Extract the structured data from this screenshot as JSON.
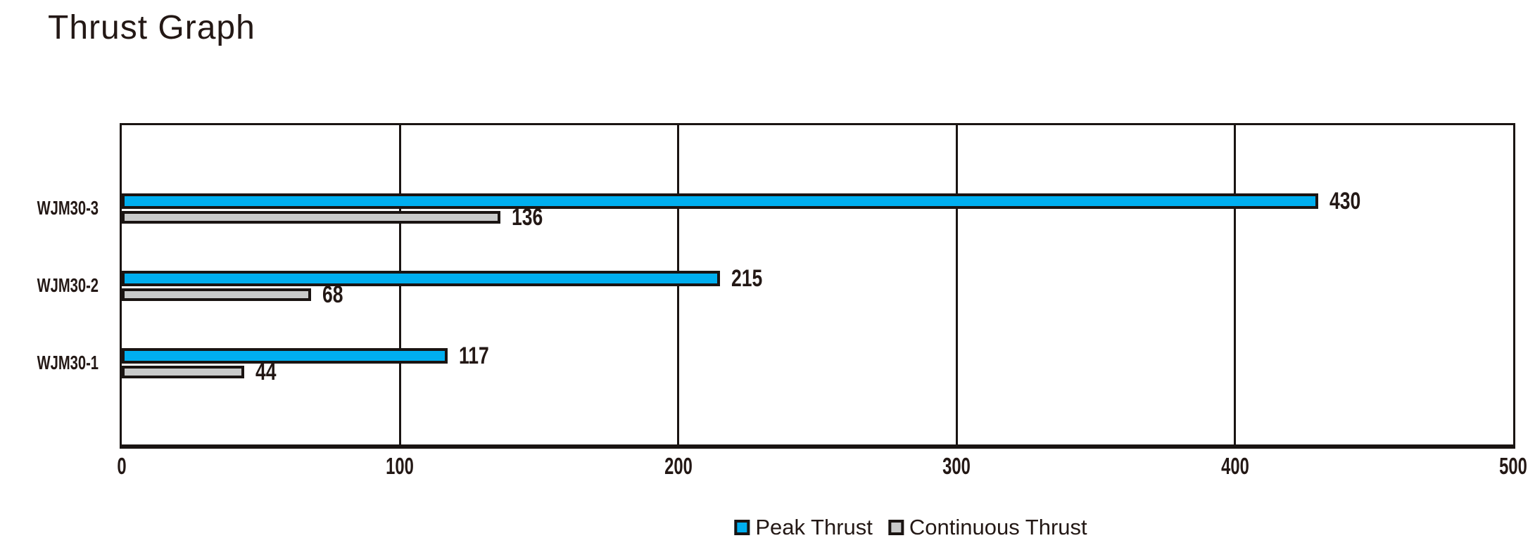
{
  "page": {
    "title": "Thrust Graph"
  },
  "chart_data": {
    "type": "bar",
    "orientation": "horizontal",
    "title": "Thrust Graph",
    "xlabel": "",
    "ylabel": "",
    "categories": [
      "WJM30-3",
      "WJM30-2",
      "WJM30-1"
    ],
    "series": [
      {
        "name": "Peak Thrust",
        "color": "#00AEEF",
        "values": [
          430,
          215,
          117
        ]
      },
      {
        "name": "Continuous Thrust",
        "color": "#C9CACA",
        "values": [
          136,
          68,
          44
        ]
      }
    ],
    "xlim": [
      0,
      500
    ],
    "x_ticks": [
      0,
      100,
      200,
      300,
      400,
      500
    ],
    "grid": true,
    "value_labels": true,
    "legend_position": "bottom",
    "colors": {
      "ink": "#231815",
      "line": "#1A1412",
      "background": "#FFFFFF"
    }
  }
}
